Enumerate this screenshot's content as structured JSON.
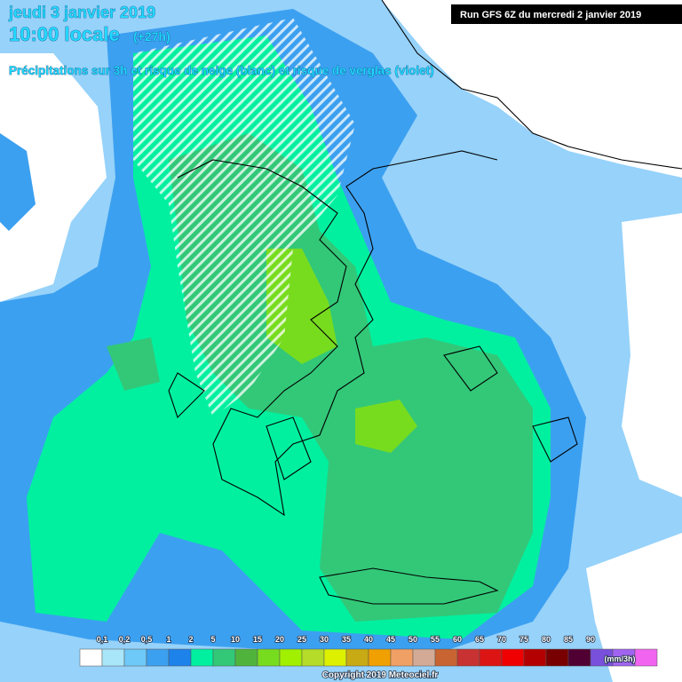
{
  "header": {
    "date": "jeudi 3 janvier 2019",
    "time": "10:00 locale",
    "lead": "(+27h)",
    "subtitle": "Précipitations sur 3h et risque de neige (blanc) et risque de verglas (violet)",
    "run": "Run GFS 6Z du mercredi 2 janvier 2019"
  },
  "legend": {
    "labels": [
      "0,1",
      "0,2",
      "0,5",
      "1",
      "2",
      "5",
      "10",
      "15",
      "20",
      "25",
      "30",
      "35",
      "40",
      "45",
      "50",
      "55",
      "60",
      "65",
      "70",
      "75",
      "80",
      "85",
      "90"
    ],
    "colors": [
      "#ffffff",
      "#aae6fa",
      "#6ec8f8",
      "#3ca0f0",
      "#1e82eb",
      "#00f0a0",
      "#32c878",
      "#50b43c",
      "#78dc1e",
      "#a0f000",
      "#b4dc28",
      "#dcf000",
      "#c8aa14",
      "#f0a000",
      "#f0a064",
      "#d2aa96",
      "#c86432",
      "#c83232",
      "#dc1414",
      "#f00000",
      "#b40000",
      "#780000",
      "#500032",
      "#7850dc",
      "#a064f0",
      "#f064f0"
    ],
    "unit": "(mm/3h)"
  },
  "footer": {
    "copyright": "Copyright 2019 Meteociel.fr"
  }
}
